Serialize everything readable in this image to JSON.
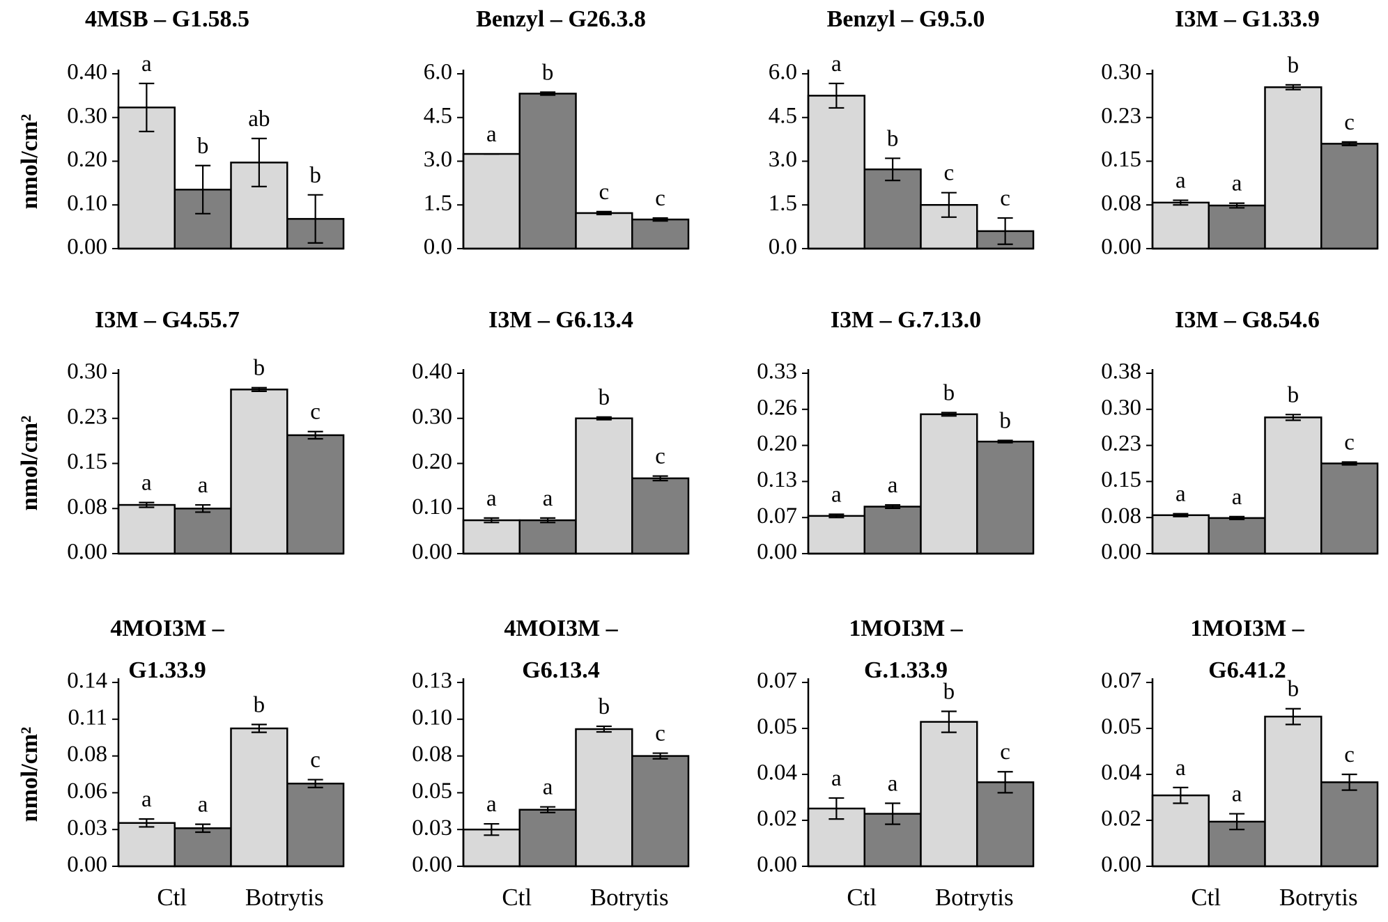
{
  "figure": {
    "y_axis_label": "nmol/cm²",
    "x_categories": [
      "Ctl",
      "Botrytis"
    ],
    "bar_colors": {
      "light": "#d9d9d9",
      "dark": "#808080"
    }
  },
  "chart_data": [
    {
      "type": "bar",
      "title_lines": [
        "4MSB – G1.58.5"
      ],
      "yticks": [
        "0.00",
        "0.10",
        "0.20",
        "0.30",
        "0.40"
      ],
      "ylim": [
        0,
        0.4
      ],
      "values": [
        0.323,
        0.135,
        0.197,
        0.068
      ],
      "errors": [
        0.055,
        0.055,
        0.055,
        0.055
      ],
      "letters": [
        "a",
        "b",
        "ab",
        "b"
      ]
    },
    {
      "type": "bar",
      "title_lines": [
        "Benzyl – G26.3.8"
      ],
      "yticks": [
        "0.0",
        "1.5",
        "3.0",
        "4.5",
        "6.0"
      ],
      "ylim": [
        0,
        6.0
      ],
      "values": [
        3.25,
        5.32,
        1.22,
        1.0
      ],
      "errors": [
        0.0,
        0.05,
        0.05,
        0.05
      ],
      "letters": [
        "a",
        "b",
        "c",
        "c"
      ]
    },
    {
      "type": "bar",
      "title_lines": [
        "Benzyl – G9.5.0"
      ],
      "yticks": [
        "0.0",
        "1.5",
        "3.0",
        "4.5",
        "6.0"
      ],
      "ylim": [
        0,
        6.0
      ],
      "values": [
        5.25,
        2.72,
        1.5,
        0.6
      ],
      "errors": [
        0.42,
        0.38,
        0.42,
        0.45
      ],
      "letters": [
        "a",
        "b",
        "c",
        "c"
      ]
    },
    {
      "type": "bar",
      "title_lines": [
        "I3M – G1.33.9"
      ],
      "yticks": [
        "0.00",
        "0.08",
        "0.15",
        "0.23",
        "0.30"
      ],
      "ylim": [
        0,
        0.3
      ],
      "values": [
        0.079,
        0.074,
        0.277,
        0.18
      ],
      "errors": [
        0.004,
        0.004,
        0.004,
        0.003
      ],
      "letters": [
        "a",
        "a",
        "b",
        "c"
      ]
    },
    {
      "type": "bar",
      "title_lines": [
        "I3M – G4.55.7"
      ],
      "yticks": [
        "0.00",
        "0.08",
        "0.15",
        "0.23",
        "0.30"
      ],
      "ylim": [
        0,
        0.3
      ],
      "values": [
        0.081,
        0.075,
        0.273,
        0.197
      ],
      "errors": [
        0.004,
        0.006,
        0.003,
        0.006
      ],
      "letters": [
        "a",
        "a",
        "b",
        "c"
      ]
    },
    {
      "type": "bar",
      "title_lines": [
        "I3M – G6.13.4"
      ],
      "yticks": [
        "0.00",
        "0.10",
        "0.20",
        "0.30",
        "0.40"
      ],
      "ylim": [
        0,
        0.4
      ],
      "values": [
        0.074,
        0.074,
        0.3,
        0.167
      ],
      "errors": [
        0.005,
        0.005,
        0.003,
        0.005
      ],
      "letters": [
        "a",
        "a",
        "b",
        "c"
      ]
    },
    {
      "type": "bar",
      "title_lines": [
        "I3M – G.7.13.0"
      ],
      "yticks": [
        "0.00",
        "0.07",
        "0.13",
        "0.20",
        "0.26",
        "0.33"
      ],
      "ylim": [
        0,
        0.33
      ],
      "values": [
        0.069,
        0.086,
        0.255,
        0.205
      ],
      "errors": [
        0.003,
        0.003,
        0.003,
        0.002
      ],
      "letters": [
        "a",
        "a",
        "b",
        "b"
      ]
    },
    {
      "type": "bar",
      "title_lines": [
        "I3M – G8.54.6"
      ],
      "yticks": [
        "0.00",
        "0.08",
        "0.15",
        "0.23",
        "0.30",
        "0.38"
      ],
      "ylim": [
        0,
        0.38
      ],
      "values": [
        0.081,
        0.075,
        0.287,
        0.19
      ],
      "errors": [
        0.003,
        0.003,
        0.006,
        0.003
      ],
      "letters": [
        "a",
        "a",
        "b",
        "c"
      ]
    },
    {
      "type": "bar",
      "title_lines": [
        "4MOI3M –",
        "G1.33.9"
      ],
      "yticks": [
        "0.00",
        "0.03",
        "0.06",
        "0.08",
        "0.11",
        "0.14"
      ],
      "ylim": [
        0,
        0.14
      ],
      "values": [
        0.033,
        0.029,
        0.105,
        0.063
      ],
      "errors": [
        0.003,
        0.003,
        0.003,
        0.003
      ],
      "letters": [
        "a",
        "a",
        "b",
        "c"
      ]
    },
    {
      "type": "bar",
      "title_lines": [
        "4MOI3M –",
        "G6.13.4"
      ],
      "yticks": [
        "0.00",
        "0.03",
        "0.05",
        "0.08",
        "0.10",
        "0.13"
      ],
      "ylim": [
        0,
        0.13
      ],
      "values": [
        0.026,
        0.04,
        0.097,
        0.078
      ],
      "errors": [
        0.004,
        0.002,
        0.002,
        0.002
      ],
      "letters": [
        "a",
        "a",
        "b",
        "c"
      ]
    },
    {
      "type": "bar",
      "title_lines": [
        "1MOI3M –",
        "G.1.33.9"
      ],
      "yticks": [
        "0.00",
        "0.02",
        "0.04",
        "0.05",
        "0.07"
      ],
      "ylim": [
        0,
        0.07
      ],
      "values": [
        0.022,
        0.02,
        0.055,
        0.032
      ],
      "errors": [
        0.004,
        0.004,
        0.004,
        0.004
      ],
      "letters": [
        "a",
        "a",
        "b",
        "c"
      ]
    },
    {
      "type": "bar",
      "title_lines": [
        "1MOI3M –",
        "G6.41.2"
      ],
      "yticks": [
        "0.00",
        "0.02",
        "0.04",
        "0.05",
        "0.07"
      ],
      "ylim": [
        0,
        0.07
      ],
      "values": [
        0.027,
        0.017,
        0.057,
        0.032
      ],
      "errors": [
        0.003,
        0.003,
        0.003,
        0.003
      ],
      "letters": [
        "a",
        "a",
        "b",
        "c"
      ]
    }
  ]
}
